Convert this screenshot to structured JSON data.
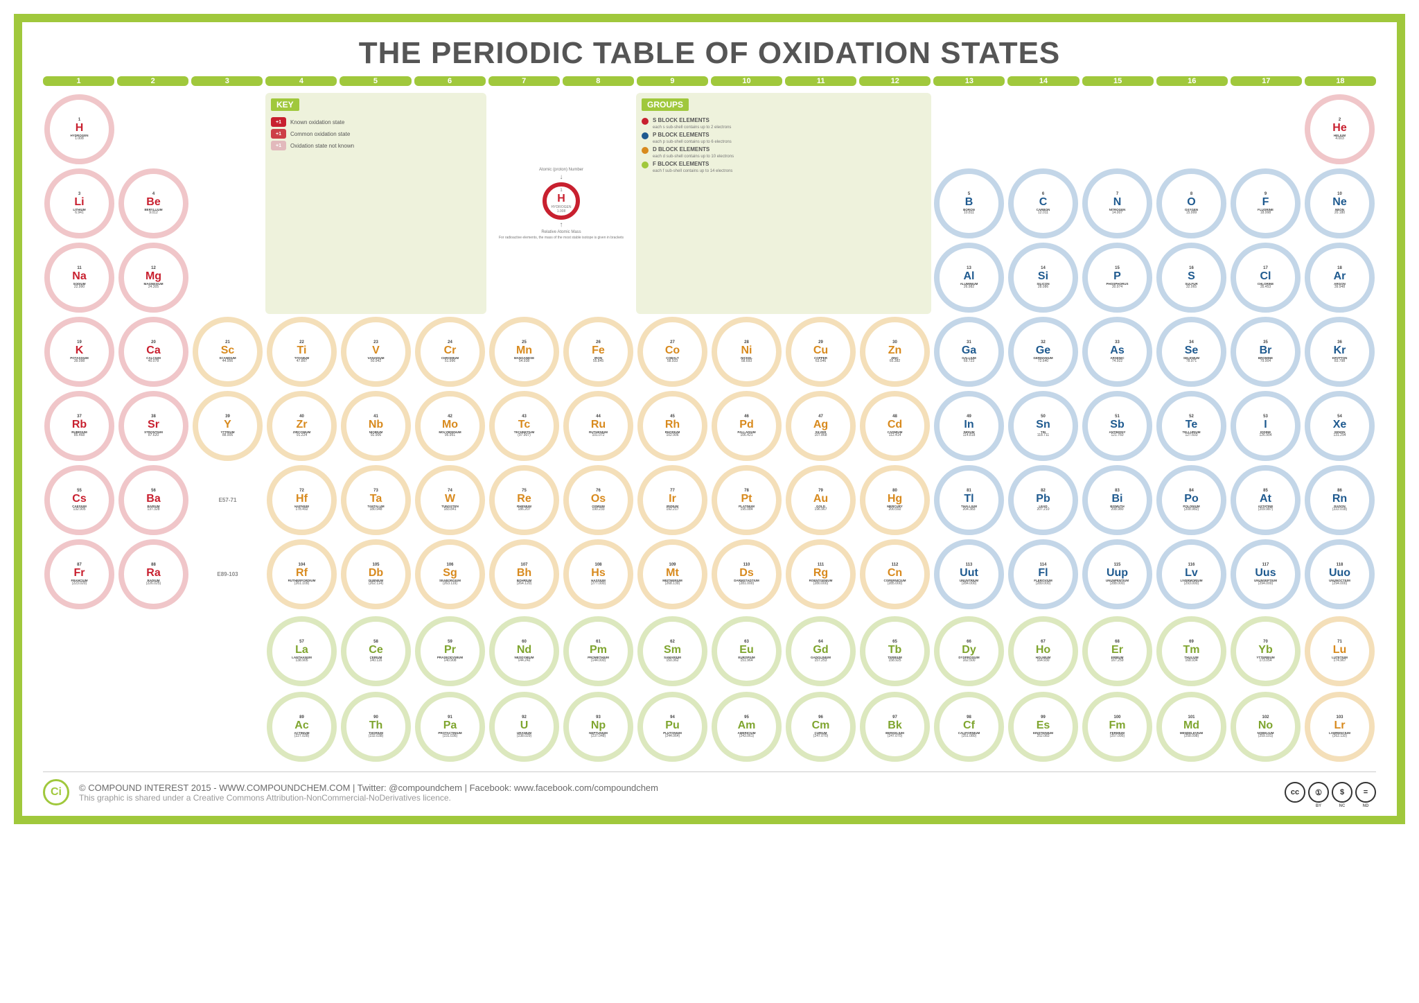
{
  "title": "THE PERIODIC TABLE OF OXIDATION STATES",
  "colors": {
    "frame": "#a0c83c",
    "title": "#555555",
    "s_block": "#c8202f",
    "p_block": "#1f5a8f",
    "d_block": "#d88a1e",
    "f_block": "#a0c83c",
    "s_ring_bg": "#f0c6c9",
    "p_ring_bg": "#c3d6e8",
    "d_ring_bg": "#f4dfb9",
    "f_ring_bg": "#dce8be",
    "panel_bg": "#eef2dc"
  },
  "groups_bar": [
    "1",
    "2",
    "3",
    "4",
    "5",
    "6",
    "7",
    "8",
    "9",
    "10",
    "11",
    "12",
    "13",
    "14",
    "15",
    "16",
    "17",
    "18"
  ],
  "key": {
    "title": "KEY",
    "rows": [
      {
        "chip": "+1",
        "style": "solid",
        "label": "Known oxidation state"
      },
      {
        "chip": "+1",
        "style": "outline",
        "label": "Common oxidation state"
      },
      {
        "chip": "+1",
        "style": "faded",
        "label": "Oxidation state not known"
      }
    ]
  },
  "legend": {
    "top": "Atomic (proton) Number",
    "elem": {
      "num": "1",
      "sym": "H",
      "name": "HYDROGEN",
      "mass": "1.008"
    },
    "bottom1": "Relative Atomic Mass",
    "bottom2": "For radioactive elements, the mass of the most stable isotope is given in brackets"
  },
  "groups_panel": {
    "title": "GROUPS",
    "rows": [
      {
        "block": "s",
        "title": "S BLOCK ELEMENTS",
        "sub": "each s sub-shell contains up to 2 electrons"
      },
      {
        "block": "p",
        "title": "P BLOCK ELEMENTS",
        "sub": "each p sub-shell contains up to 6 electrons"
      },
      {
        "block": "d",
        "title": "D BLOCK ELEMENTS",
        "sub": "each d sub-shell contains up to 10 electrons"
      },
      {
        "block": "f",
        "title": "F BLOCK ELEMENTS",
        "sub": "each f sub-shell contains up to 14 electrons"
      }
    ]
  },
  "placeholders": {
    "lan": "E57-71",
    "act": "E89-103"
  },
  "elements": [
    {
      "n": 1,
      "sym": "H",
      "name": "HYDROGEN",
      "mass": "1.008",
      "blk": "s",
      "r": 1,
      "c": 1
    },
    {
      "n": 2,
      "sym": "He",
      "name": "HELIUM",
      "mass": "4.003",
      "blk": "s",
      "r": 1,
      "c": 18
    },
    {
      "n": 3,
      "sym": "Li",
      "name": "LITHIUM",
      "mass": "6.941",
      "blk": "s",
      "r": 2,
      "c": 1
    },
    {
      "n": 4,
      "sym": "Be",
      "name": "BERYLLIUM",
      "mass": "9.012",
      "blk": "s",
      "r": 2,
      "c": 2
    },
    {
      "n": 5,
      "sym": "B",
      "name": "BORON",
      "mass": "10.811",
      "blk": "p",
      "r": 2,
      "c": 13
    },
    {
      "n": 6,
      "sym": "C",
      "name": "CARBON",
      "mass": "12.011",
      "blk": "p",
      "r": 2,
      "c": 14
    },
    {
      "n": 7,
      "sym": "N",
      "name": "NITROGEN",
      "mass": "14.007",
      "blk": "p",
      "r": 2,
      "c": 15
    },
    {
      "n": 8,
      "sym": "O",
      "name": "OXYGEN",
      "mass": "15.999",
      "blk": "p",
      "r": 2,
      "c": 16
    },
    {
      "n": 9,
      "sym": "F",
      "name": "FLUORINE",
      "mass": "18.998",
      "blk": "p",
      "r": 2,
      "c": 17
    },
    {
      "n": 10,
      "sym": "Ne",
      "name": "NEON",
      "mass": "20.180",
      "blk": "p",
      "r": 2,
      "c": 18
    },
    {
      "n": 11,
      "sym": "Na",
      "name": "SODIUM",
      "mass": "22.990",
      "blk": "s",
      "r": 3,
      "c": 1
    },
    {
      "n": 12,
      "sym": "Mg",
      "name": "MAGNESIUM",
      "mass": "24.305",
      "blk": "s",
      "r": 3,
      "c": 2
    },
    {
      "n": 13,
      "sym": "Al",
      "name": "ALUMINIUM",
      "mass": "26.982",
      "blk": "p",
      "r": 3,
      "c": 13
    },
    {
      "n": 14,
      "sym": "Si",
      "name": "SILICON",
      "mass": "28.086",
      "blk": "p",
      "r": 3,
      "c": 14
    },
    {
      "n": 15,
      "sym": "P",
      "name": "PHOSPHORUS",
      "mass": "30.974",
      "blk": "p",
      "r": 3,
      "c": 15
    },
    {
      "n": 16,
      "sym": "S",
      "name": "SULFUR",
      "mass": "32.065",
      "blk": "p",
      "r": 3,
      "c": 16
    },
    {
      "n": 17,
      "sym": "Cl",
      "name": "CHLORINE",
      "mass": "35.453",
      "blk": "p",
      "r": 3,
      "c": 17
    },
    {
      "n": 18,
      "sym": "Ar",
      "name": "ARGON",
      "mass": "39.948",
      "blk": "p",
      "r": 3,
      "c": 18
    },
    {
      "n": 19,
      "sym": "K",
      "name": "POTASSIUM",
      "mass": "39.098",
      "blk": "s",
      "r": 4,
      "c": 1
    },
    {
      "n": 20,
      "sym": "Ca",
      "name": "CALCIUM",
      "mass": "40.078",
      "blk": "s",
      "r": 4,
      "c": 2
    },
    {
      "n": 21,
      "sym": "Sc",
      "name": "SCANDIUM",
      "mass": "44.956",
      "blk": "d",
      "r": 4,
      "c": 3
    },
    {
      "n": 22,
      "sym": "Ti",
      "name": "TITANIUM",
      "mass": "47.867",
      "blk": "d",
      "r": 4,
      "c": 4
    },
    {
      "n": 23,
      "sym": "V",
      "name": "VANADIUM",
      "mass": "50.942",
      "blk": "d",
      "r": 4,
      "c": 5
    },
    {
      "n": 24,
      "sym": "Cr",
      "name": "CHROMIUM",
      "mass": "51.996",
      "blk": "d",
      "r": 4,
      "c": 6
    },
    {
      "n": 25,
      "sym": "Mn",
      "name": "MANGANESE",
      "mass": "54.938",
      "blk": "d",
      "r": 4,
      "c": 7
    },
    {
      "n": 26,
      "sym": "Fe",
      "name": "IRON",
      "mass": "55.845",
      "blk": "d",
      "r": 4,
      "c": 8
    },
    {
      "n": 27,
      "sym": "Co",
      "name": "COBALT",
      "mass": "58.933",
      "blk": "d",
      "r": 4,
      "c": 9
    },
    {
      "n": 28,
      "sym": "Ni",
      "name": "NICKEL",
      "mass": "58.693",
      "blk": "d",
      "r": 4,
      "c": 10
    },
    {
      "n": 29,
      "sym": "Cu",
      "name": "COPPER",
      "mass": "63.546",
      "blk": "d",
      "r": 4,
      "c": 11
    },
    {
      "n": 30,
      "sym": "Zn",
      "name": "ZINC",
      "mass": "65.382",
      "blk": "d",
      "r": 4,
      "c": 12
    },
    {
      "n": 31,
      "sym": "Ga",
      "name": "GALLIUM",
      "mass": "69.723",
      "blk": "p",
      "r": 4,
      "c": 13
    },
    {
      "n": 32,
      "sym": "Ge",
      "name": "GERMANIUM",
      "mass": "72.640",
      "blk": "p",
      "r": 4,
      "c": 14
    },
    {
      "n": 33,
      "sym": "As",
      "name": "ARSENIC",
      "mass": "74.922",
      "blk": "p",
      "r": 4,
      "c": 15
    },
    {
      "n": 34,
      "sym": "Se",
      "name": "SELENIUM",
      "mass": "78.971",
      "blk": "p",
      "r": 4,
      "c": 16
    },
    {
      "n": 35,
      "sym": "Br",
      "name": "BROMINE",
      "mass": "79.904",
      "blk": "p",
      "r": 4,
      "c": 17
    },
    {
      "n": 36,
      "sym": "Kr",
      "name": "KRYPTON",
      "mass": "83.798",
      "blk": "p",
      "r": 4,
      "c": 18
    },
    {
      "n": 37,
      "sym": "Rb",
      "name": "RUBIDIUM",
      "mass": "85.468",
      "blk": "s",
      "r": 5,
      "c": 1
    },
    {
      "n": 38,
      "sym": "Sr",
      "name": "STRONTIUM",
      "mass": "87.620",
      "blk": "s",
      "r": 5,
      "c": 2
    },
    {
      "n": 39,
      "sym": "Y",
      "name": "YTTRIUM",
      "mass": "88.906",
      "blk": "d",
      "r": 5,
      "c": 3
    },
    {
      "n": 40,
      "sym": "Zr",
      "name": "ZIRCONIUM",
      "mass": "91.224",
      "blk": "d",
      "r": 5,
      "c": 4
    },
    {
      "n": 41,
      "sym": "Nb",
      "name": "NIOBIUM",
      "mass": "92.906",
      "blk": "d",
      "r": 5,
      "c": 5
    },
    {
      "n": 42,
      "sym": "Mo",
      "name": "MOLYBDENUM",
      "mass": "95.951",
      "blk": "d",
      "r": 5,
      "c": 6
    },
    {
      "n": 43,
      "sym": "Tc",
      "name": "TECHNETIUM",
      "mass": "(97.907)",
      "blk": "d",
      "r": 5,
      "c": 7
    },
    {
      "n": 44,
      "sym": "Ru",
      "name": "RUTHENIUM",
      "mass": "101.072",
      "blk": "d",
      "r": 5,
      "c": 8
    },
    {
      "n": 45,
      "sym": "Rh",
      "name": "RHODIUM",
      "mass": "102.906",
      "blk": "d",
      "r": 5,
      "c": 9
    },
    {
      "n": 46,
      "sym": "Pd",
      "name": "PALLADIUM",
      "mass": "106.421",
      "blk": "d",
      "r": 5,
      "c": 10
    },
    {
      "n": 47,
      "sym": "Ag",
      "name": "SILVER",
      "mass": "107.868",
      "blk": "d",
      "r": 5,
      "c": 11
    },
    {
      "n": 48,
      "sym": "Cd",
      "name": "CADMIUM",
      "mass": "112.414",
      "blk": "d",
      "r": 5,
      "c": 12
    },
    {
      "n": 49,
      "sym": "In",
      "name": "INDIUM",
      "mass": "114.818",
      "blk": "p",
      "r": 5,
      "c": 13
    },
    {
      "n": 50,
      "sym": "Sn",
      "name": "TIN",
      "mass": "118.711",
      "blk": "p",
      "r": 5,
      "c": 14
    },
    {
      "n": 51,
      "sym": "Sb",
      "name": "ANTIMONY",
      "mass": "121.760",
      "blk": "p",
      "r": 5,
      "c": 15
    },
    {
      "n": 52,
      "sym": "Te",
      "name": "TELLURIUM",
      "mass": "127.603",
      "blk": "p",
      "r": 5,
      "c": 16
    },
    {
      "n": 53,
      "sym": "I",
      "name": "IODINE",
      "mass": "126.904",
      "blk": "p",
      "r": 5,
      "c": 17
    },
    {
      "n": 54,
      "sym": "Xe",
      "name": "XENON",
      "mass": "131.294",
      "blk": "p",
      "r": 5,
      "c": 18
    },
    {
      "n": 55,
      "sym": "Cs",
      "name": "CAESIUM",
      "mass": "132.905",
      "blk": "s",
      "r": 6,
      "c": 1
    },
    {
      "n": 56,
      "sym": "Ba",
      "name": "BARIUM",
      "mass": "137.328",
      "blk": "s",
      "r": 6,
      "c": 2
    },
    {
      "n": 72,
      "sym": "Hf",
      "name": "HAFNIUM",
      "mass": "178.492",
      "blk": "d",
      "r": 6,
      "c": 4
    },
    {
      "n": 73,
      "sym": "Ta",
      "name": "TANTALUM",
      "mass": "180.948",
      "blk": "d",
      "r": 6,
      "c": 5
    },
    {
      "n": 74,
      "sym": "W",
      "name": "TUNGSTEN",
      "mass": "183.841",
      "blk": "d",
      "r": 6,
      "c": 6
    },
    {
      "n": 75,
      "sym": "Re",
      "name": "RHENIUM",
      "mass": "186.207",
      "blk": "d",
      "r": 6,
      "c": 7
    },
    {
      "n": 76,
      "sym": "Os",
      "name": "OSMIUM",
      "mass": "190.233",
      "blk": "d",
      "r": 6,
      "c": 8
    },
    {
      "n": 77,
      "sym": "Ir",
      "name": "IRIDIUM",
      "mass": "192.217",
      "blk": "d",
      "r": 6,
      "c": 9
    },
    {
      "n": 78,
      "sym": "Pt",
      "name": "PLATINUM",
      "mass": "195.084",
      "blk": "d",
      "r": 6,
      "c": 10
    },
    {
      "n": 79,
      "sym": "Au",
      "name": "GOLD",
      "mass": "196.967",
      "blk": "d",
      "r": 6,
      "c": 11
    },
    {
      "n": 80,
      "sym": "Hg",
      "name": "MERCURY",
      "mass": "200.592",
      "blk": "d",
      "r": 6,
      "c": 12
    },
    {
      "n": 81,
      "sym": "Tl",
      "name": "THALLIUM",
      "mass": "204.383",
      "blk": "p",
      "r": 6,
      "c": 13
    },
    {
      "n": 82,
      "sym": "Pb",
      "name": "LEAD",
      "mass": "207.210",
      "blk": "p",
      "r": 6,
      "c": 14
    },
    {
      "n": 83,
      "sym": "Bi",
      "name": "BISMUTH",
      "mass": "208.980",
      "blk": "p",
      "r": 6,
      "c": 15
    },
    {
      "n": 84,
      "sym": "Po",
      "name": "POLONIUM",
      "mass": "(208.982)",
      "blk": "p",
      "r": 6,
      "c": 16
    },
    {
      "n": 85,
      "sym": "At",
      "name": "ASTATINE",
      "mass": "(209.987)",
      "blk": "p",
      "r": 6,
      "c": 17
    },
    {
      "n": 86,
      "sym": "Rn",
      "name": "RADON",
      "mass": "(222.018)",
      "blk": "p",
      "r": 6,
      "c": 18
    },
    {
      "n": 87,
      "sym": "Fr",
      "name": "FRANCIUM",
      "mass": "(223.020)",
      "blk": "s",
      "r": 7,
      "c": 1
    },
    {
      "n": 88,
      "sym": "Ra",
      "name": "RADIUM",
      "mass": "(226.025)",
      "blk": "s",
      "r": 7,
      "c": 2
    },
    {
      "n": 104,
      "sym": "Rf",
      "name": "RUTHERFORDIUM",
      "mass": "(261.109)",
      "blk": "d",
      "r": 7,
      "c": 4
    },
    {
      "n": 105,
      "sym": "Db",
      "name": "DUBNIUM",
      "mass": "(262.114)",
      "blk": "d",
      "r": 7,
      "c": 5
    },
    {
      "n": 106,
      "sym": "Sg",
      "name": "SEABORGIUM",
      "mass": "(263.119)",
      "blk": "d",
      "r": 7,
      "c": 6
    },
    {
      "n": 107,
      "sym": "Bh",
      "name": "BOHRIUM",
      "mass": "(264.120)",
      "blk": "d",
      "r": 7,
      "c": 7
    },
    {
      "n": 108,
      "sym": "Hs",
      "name": "HASSIUM",
      "mass": "(277.000)",
      "blk": "d",
      "r": 7,
      "c": 8
    },
    {
      "n": 109,
      "sym": "Mt",
      "name": "MEITNERIUM",
      "mass": "(268.139)",
      "blk": "d",
      "r": 7,
      "c": 9
    },
    {
      "n": 110,
      "sym": "Ds",
      "name": "DARMSTADTIUM",
      "mass": "(281.000)",
      "blk": "d",
      "r": 7,
      "c": 10
    },
    {
      "n": 111,
      "sym": "Rg",
      "name": "ROENTGENIUM",
      "mass": "(280.000)",
      "blk": "d",
      "r": 7,
      "c": 11
    },
    {
      "n": 112,
      "sym": "Cn",
      "name": "COPERNICIUM",
      "mass": "(285.000)",
      "blk": "d",
      "r": 7,
      "c": 12
    },
    {
      "n": 113,
      "sym": "Uut",
      "name": "UNUNTRIUM",
      "mass": "(284.000)",
      "blk": "p",
      "r": 7,
      "c": 13
    },
    {
      "n": 114,
      "sym": "Fl",
      "name": "FLEROVIUM",
      "mass": "(289.000)",
      "blk": "p",
      "r": 7,
      "c": 14
    },
    {
      "n": 115,
      "sym": "Uup",
      "name": "UNUNPENTIUM",
      "mass": "(288.000)",
      "blk": "p",
      "r": 7,
      "c": 15
    },
    {
      "n": 116,
      "sym": "Lv",
      "name": "LIVERMORIUM",
      "mass": "(293.000)",
      "blk": "p",
      "r": 7,
      "c": 16
    },
    {
      "n": 117,
      "sym": "Uus",
      "name": "UNUNSEPTIUM",
      "mass": "(294.000)",
      "blk": "p",
      "r": 7,
      "c": 17
    },
    {
      "n": 118,
      "sym": "Uuo",
      "name": "UNUNOCTIUM",
      "mass": "(294.000)",
      "blk": "p",
      "r": 7,
      "c": 18
    }
  ],
  "lanthanides": [
    {
      "n": 57,
      "sym": "La",
      "name": "LANTHANUM",
      "mass": "138.905",
      "blk": "f"
    },
    {
      "n": 58,
      "sym": "Ce",
      "name": "CERIUM",
      "mass": "140.116",
      "blk": "f"
    },
    {
      "n": 59,
      "sym": "Pr",
      "name": "PRASEODYMIUM",
      "mass": "140.908",
      "blk": "f"
    },
    {
      "n": 60,
      "sym": "Nd",
      "name": "NEODYMIUM",
      "mass": "144.242",
      "blk": "f"
    },
    {
      "n": 61,
      "sym": "Pm",
      "name": "PROMETHIUM",
      "mass": "(144.000)",
      "blk": "f"
    },
    {
      "n": 62,
      "sym": "Sm",
      "name": "SAMARIUM",
      "mass": "150.362",
      "blk": "f"
    },
    {
      "n": 63,
      "sym": "Eu",
      "name": "EUROPIUM",
      "mass": "151.964",
      "blk": "f"
    },
    {
      "n": 64,
      "sym": "Gd",
      "name": "GADOLINIUM",
      "mass": "157.253",
      "blk": "f"
    },
    {
      "n": 65,
      "sym": "Tb",
      "name": "TERBIUM",
      "mass": "158.925",
      "blk": "f"
    },
    {
      "n": 66,
      "sym": "Dy",
      "name": "DYSPROSIUM",
      "mass": "162.500",
      "blk": "f"
    },
    {
      "n": 67,
      "sym": "Ho",
      "name": "HOLMIUM",
      "mass": "164.930",
      "blk": "f"
    },
    {
      "n": 68,
      "sym": "Er",
      "name": "ERBIUM",
      "mass": "167.259",
      "blk": "f"
    },
    {
      "n": 69,
      "sym": "Tm",
      "name": "THULIUM",
      "mass": "168.934",
      "blk": "f"
    },
    {
      "n": 70,
      "sym": "Yb",
      "name": "YTTERBIUM",
      "mass": "173.054",
      "blk": "f"
    },
    {
      "n": 71,
      "sym": "Lu",
      "name": "LUTETIUM",
      "mass": "174.967",
      "blk": "d"
    }
  ],
  "actinides": [
    {
      "n": 89,
      "sym": "Ac",
      "name": "ACTINIUM",
      "mass": "(227.028)",
      "blk": "f"
    },
    {
      "n": 90,
      "sym": "Th",
      "name": "THORIUM",
      "mass": "(232.038)",
      "blk": "f"
    },
    {
      "n": 91,
      "sym": "Pa",
      "name": "PROTACTINIUM",
      "mass": "(231.036)",
      "blk": "f"
    },
    {
      "n": 92,
      "sym": "U",
      "name": "URANIUM",
      "mass": "(238.029)",
      "blk": "f"
    },
    {
      "n": 93,
      "sym": "Np",
      "name": "NEPTUNIUM",
      "mass": "(237.048)",
      "blk": "f"
    },
    {
      "n": 94,
      "sym": "Pu",
      "name": "PLUTONIUM",
      "mass": "(244.064)",
      "blk": "f"
    },
    {
      "n": 95,
      "sym": "Am",
      "name": "AMERICIUM",
      "mass": "(243.061)",
      "blk": "f"
    },
    {
      "n": 96,
      "sym": "Cm",
      "name": "CURIUM",
      "mass": "(247.070)",
      "blk": "f"
    },
    {
      "n": 97,
      "sym": "Bk",
      "name": "BERKELIUM",
      "mass": "(247.070)",
      "blk": "f"
    },
    {
      "n": 98,
      "sym": "Cf",
      "name": "CALIFORNIUM",
      "mass": "(251.080)",
      "blk": "f"
    },
    {
      "n": 99,
      "sym": "Es",
      "name": "EINSTEINIUM",
      "mass": "252.083",
      "blk": "f"
    },
    {
      "n": 100,
      "sym": "Fm",
      "name": "FERMIUM",
      "mass": "(257.095)",
      "blk": "f"
    },
    {
      "n": 101,
      "sym": "Md",
      "name": "MENDELEVIUM",
      "mass": "(258.098)",
      "blk": "f"
    },
    {
      "n": 102,
      "sym": "No",
      "name": "NOBELIUM",
      "mass": "(259.101)",
      "blk": "f"
    },
    {
      "n": 103,
      "sym": "Lr",
      "name": "LAWRENCIUM",
      "mass": "(262.110)",
      "blk": "d"
    }
  ],
  "footer": {
    "logo": "Ci",
    "line1": "© COMPOUND INTEREST 2015 - WWW.COMPOUNDCHEM.COM  |  Twitter: @compoundchem  |  Facebook: www.facebook.com/compoundchem",
    "line2": "This graphic is shared under a Creative Commons Attribution-NonCommercial-NoDerivatives licence.",
    "cc": [
      "cc",
      "BY",
      "NC",
      "ND"
    ],
    "cc_glyphs": [
      "cc",
      "①",
      "$",
      "="
    ]
  }
}
